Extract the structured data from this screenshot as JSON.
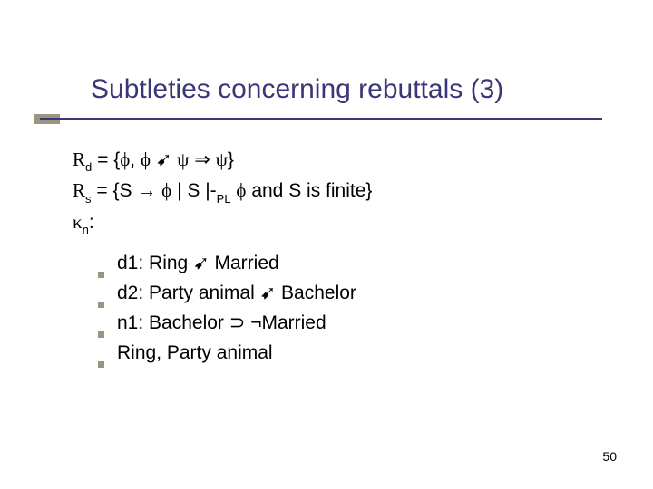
{
  "slide": {
    "title": "Subtleties concerning rebuttals (3)",
    "number": "50",
    "colors": {
      "title_color": "#3b3678",
      "underline_color": "#3b3678",
      "accent_color": "#9c9482",
      "bullet_color": "#9c9482",
      "text_color": "#000000",
      "background": "#ffffff"
    },
    "typography": {
      "title_fontsize": 30,
      "body_fontsize": 21,
      "number_fontsize": 14,
      "font_family": "Verdana"
    },
    "lines": {
      "rd": {
        "prefix_letter": "R",
        "subscript": "d",
        "eq": " = {",
        "phi1": "ϕ",
        "comma": ", ",
        "phi2": "ϕ",
        "arrow1": " ➹ ",
        "psi1": "ψ",
        "darrow": " ⇒ ",
        "psi2": "ψ",
        "close": "}"
      },
      "rs": {
        "prefix_letter": "R",
        "subscript": "s",
        "eq": " = {S ",
        "to": "→",
        "sp1": " ",
        "phi": "ϕ",
        "mid": " | S |-",
        "pl_sub": "PL",
        "sp2": " ",
        "phi2": "ϕ",
        "tail": " and S is finite}"
      },
      "kn": {
        "kappa": "κ",
        "subscript": "n",
        "colon": ":"
      }
    },
    "bullets": [
      {
        "label": "d1: Ring ",
        "arrow": "➹",
        "rest": " Married"
      },
      {
        "label": "d2: Party animal ",
        "arrow": "➹",
        "rest": " Bachelor"
      },
      {
        "label": "n1: Bachelor ",
        "arrow": "⊃",
        "rest": " ¬Married"
      },
      {
        "label": "Ring, Party animal",
        "arrow": "",
        "rest": ""
      }
    ]
  }
}
